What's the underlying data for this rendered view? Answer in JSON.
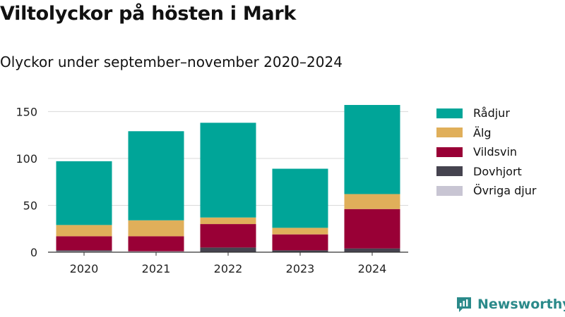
{
  "title": "Viltolyckor på hösten i Mark",
  "subtitle": "Olyckor under september–november 2020–2024",
  "brand": {
    "name": "Newsworthy",
    "icon": "newsworthy-logo-icon",
    "color": "#2b8a8a"
  },
  "chart_data": {
    "type": "bar",
    "stacked": true,
    "categories": [
      "2020",
      "2021",
      "2022",
      "2023",
      "2024"
    ],
    "series": [
      {
        "name": "Övriga djur",
        "color": "#c8c5d3",
        "values": [
          1,
          1,
          0,
          0,
          0
        ]
      },
      {
        "name": "Dovhjort",
        "color": "#45434f",
        "values": [
          1,
          0,
          5,
          2,
          4
        ]
      },
      {
        "name": "Vildsvin",
        "color": "#990036",
        "values": [
          15,
          16,
          25,
          17,
          42
        ]
      },
      {
        "name": "Älg",
        "color": "#e0af5a",
        "values": [
          12,
          17,
          7,
          7,
          16
        ]
      },
      {
        "name": "Rådjur",
        "color": "#00a598",
        "values": [
          68,
          95,
          101,
          63,
          95
        ]
      }
    ],
    "legend_order": [
      "Rådjur",
      "Älg",
      "Vildsvin",
      "Dovhjort",
      "Övriga djur"
    ],
    "yticks": [
      0,
      50,
      100,
      150
    ],
    "ylim": [
      0,
      160
    ],
    "grid": true,
    "legend_position": "right",
    "xlabel": "",
    "ylabel": ""
  }
}
